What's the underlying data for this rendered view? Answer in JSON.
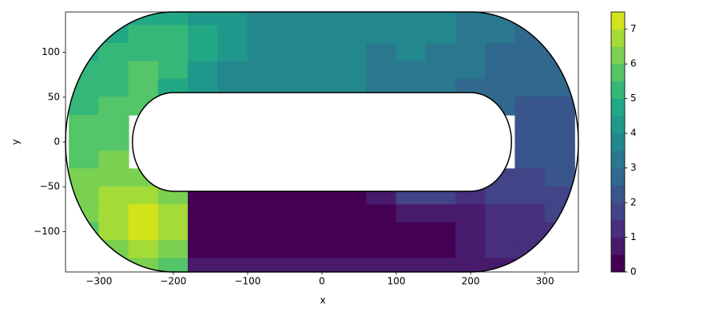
{
  "chart_data": {
    "type": "contour",
    "xlabel": "x",
    "ylabel": "y",
    "xlim": [
      -345,
      345
    ],
    "ylim": [
      -145,
      145
    ],
    "xticks": [
      {
        "value": -300,
        "label": "−300"
      },
      {
        "value": -200,
        "label": "−200"
      },
      {
        "value": -100,
        "label": "−100"
      },
      0,
      100,
      200,
      300
    ],
    "yticks": [
      {
        "value": -100,
        "label": "−100"
      },
      {
        "value": -50,
        "label": "−50"
      },
      0,
      50,
      100
    ],
    "x": [
      -320,
      -280,
      -240,
      -200,
      -160,
      -120,
      -80,
      -40,
      0,
      40,
      80,
      120,
      160,
      200,
      240,
      280,
      320
    ],
    "y": [
      140,
      120,
      100,
      80,
      60,
      40,
      20,
      0,
      -20,
      -40,
      -60,
      -80,
      -100,
      -120,
      -140
    ],
    "z": [
      [
        4.5,
        4.5,
        4.5,
        4.5,
        4.2,
        4,
        3.8,
        3.5,
        3.5,
        3.5,
        3.5,
        3.8,
        3.5,
        3.2,
        3,
        3,
        3
      ],
      [
        4.5,
        4.8,
        5,
        5,
        4.5,
        4,
        3.8,
        3.5,
        3.5,
        3.5,
        3.5,
        3.5,
        3.5,
        3.2,
        3,
        2.8,
        2.8
      ],
      [
        4.8,
        5,
        5.2,
        5.3,
        4.5,
        4,
        3.5,
        3.5,
        3.5,
        3.5,
        3.2,
        3.5,
        3.2,
        3,
        2.8,
        2.8,
        2.7
      ],
      [
        5,
        5.2,
        5.5,
        5,
        4.3,
        3.8,
        3.5,
        3.5,
        3.5,
        3.5,
        3.2,
        3.2,
        3,
        3,
        2.8,
        2.7,
        2.6
      ],
      [
        5,
        5.3,
        5.5,
        4.8,
        4.2,
        3.8,
        3.5,
        3.5,
        3.5,
        3.5,
        3.2,
        3.2,
        3,
        2.8,
        2.6,
        2.5,
        2.5
      ],
      [
        5.3,
        5.5,
        5.5,
        null,
        null,
        null,
        null,
        null,
        null,
        null,
        null,
        null,
        null,
        null,
        2.5,
        2.3,
        2.3
      ],
      [
        5.5,
        5.6,
        null,
        null,
        null,
        null,
        null,
        null,
        null,
        null,
        null,
        null,
        null,
        null,
        null,
        2.2,
        2.2
      ],
      [
        5.6,
        5.8,
        null,
        null,
        null,
        null,
        null,
        null,
        null,
        null,
        null,
        null,
        null,
        null,
        null,
        2.1,
        2.1
      ],
      [
        5.8,
        6,
        null,
        null,
        null,
        null,
        null,
        null,
        null,
        null,
        null,
        null,
        null,
        null,
        null,
        2,
        2
      ],
      [
        6,
        6.2,
        6.2,
        null,
        null,
        null,
        null,
        null,
        null,
        null,
        null,
        null,
        null,
        null,
        1.8,
        1.8,
        2
      ],
      [
        6,
        6.5,
        6.8,
        6.3,
        0.3,
        0.3,
        0.3,
        0.3,
        0.3,
        0.3,
        0.5,
        1.5,
        1.5,
        1.3,
        1.5,
        1.5,
        1.8
      ],
      [
        6,
        6.8,
        7.2,
        6.8,
        0.3,
        0.3,
        0.3,
        0.3,
        0.3,
        0.3,
        0.3,
        0.5,
        0.8,
        0.8,
        1.2,
        1.3,
        1.5
      ],
      [
        5.8,
        6.8,
        7.2,
        6.5,
        0.3,
        0.3,
        0.3,
        0.3,
        0.3,
        0.3,
        0.3,
        0.3,
        0.3,
        0.8,
        1,
        1.2,
        1.3
      ],
      [
        5.5,
        6.3,
        6.8,
        6,
        0.3,
        0.3,
        0.3,
        0.3,
        0.3,
        0.3,
        0.3,
        0.3,
        0.4,
        0.8,
        1,
        1,
        1.2
      ],
      [
        5,
        5.5,
        6,
        5.5,
        0.8,
        0.8,
        0.8,
        0.6,
        0.6,
        0.6,
        0.6,
        0.6,
        0.8,
        0.8,
        0.9,
        1,
        1
      ]
    ],
    "levels": [
      0,
      0.5,
      1,
      1.5,
      2,
      2.5,
      3,
      3.5,
      4,
      4.5,
      5,
      5.5,
      6,
      6.5,
      7,
      7.5
    ],
    "colors": [
      "#440154",
      "#481a6c",
      "#472f7d",
      "#414487",
      "#39568c",
      "#31688e",
      "#2a788e",
      "#23888e",
      "#1f988b",
      "#22a884",
      "#35b779",
      "#54c568",
      "#7ad151",
      "#a5db36",
      "#d2e21b"
    ],
    "colorbar_ticks": [
      0,
      1,
      2,
      3,
      4,
      5,
      6,
      7
    ]
  }
}
